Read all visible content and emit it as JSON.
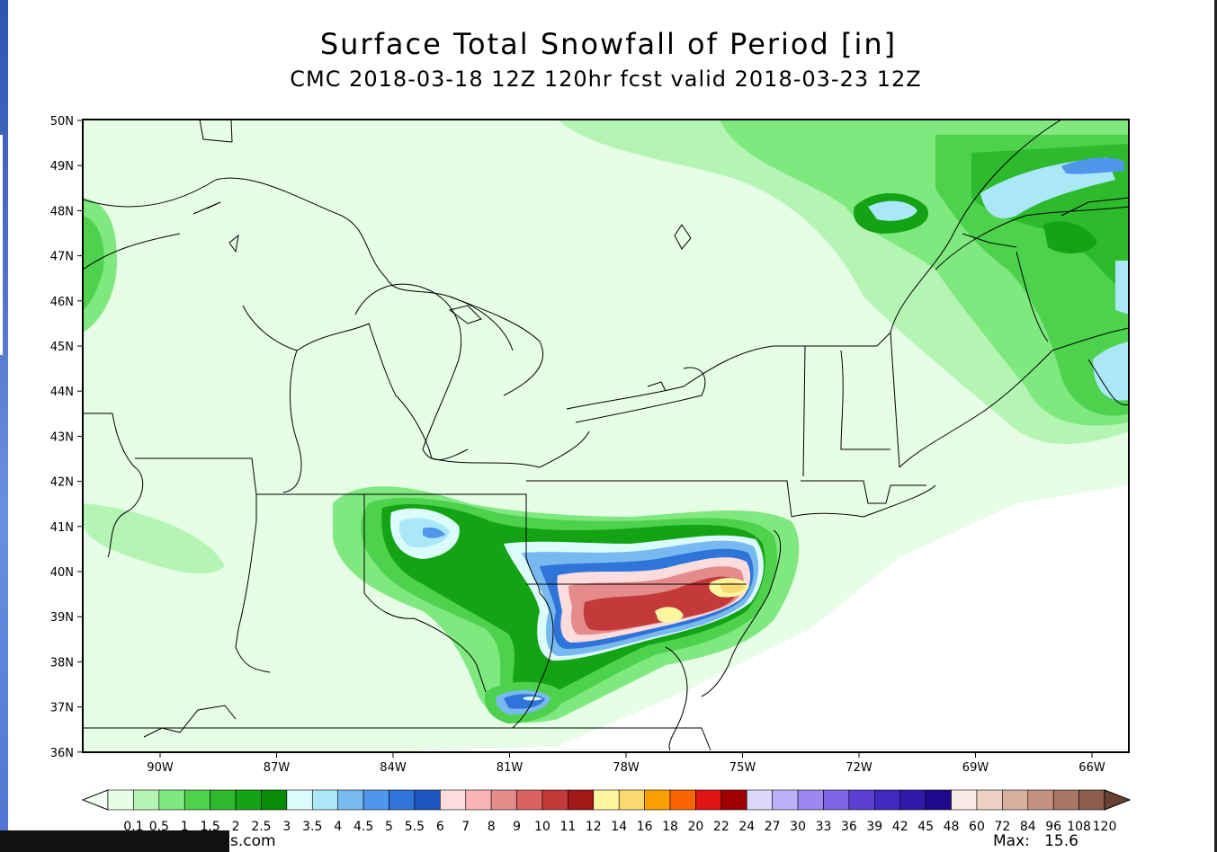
{
  "title": "Surface Total Snowfall of Period [in]",
  "subtitle": "CMC 2018-03-18 12Z 120hr fcst valid 2018-03-23 12Z",
  "lat_labels": [
    "50N",
    "49N",
    "48N",
    "47N",
    "46N",
    "45N",
    "44N",
    "43N",
    "42N",
    "41N",
    "40N",
    "39N",
    "38N",
    "37N",
    "36N"
  ],
  "lon_labels": [
    "90W",
    "87W",
    "84W",
    "81W",
    "78W",
    "75W",
    "72W",
    "69W",
    "66W"
  ],
  "colorbar": {
    "labels": [
      "0.1",
      "0.5",
      "1",
      "1.5",
      "2",
      "2.5",
      "3",
      "3.5",
      "4",
      "4.5",
      "5",
      "5.5",
      "6",
      "7",
      "8",
      "9",
      "10",
      "11",
      "12",
      "14",
      "16",
      "18",
      "20",
      "22",
      "24",
      "27",
      "30",
      "33",
      "36",
      "39",
      "42",
      "45",
      "48",
      "60",
      "72",
      "84",
      "96",
      "108",
      "120"
    ],
    "colors": [
      "#e6fde6",
      "#b4f5b4",
      "#7fe87f",
      "#4ed24e",
      "#2dba2d",
      "#14a314",
      "#068c06",
      "#dcfcfc",
      "#aae8f8",
      "#78b9f0",
      "#5096ea",
      "#2f74d8",
      "#1a55c0",
      "#fcdcdc",
      "#f8b4b4",
      "#e48c8c",
      "#dc6262",
      "#c43a3a",
      "#a01818",
      "#fcf6a0",
      "#fcd870",
      "#fca000",
      "#fc6400",
      "#e01414",
      "#a00000",
      "#dcd8fc",
      "#bcb0f8",
      "#9c88f0",
      "#7c64e4",
      "#5c40d4",
      "#4028c0",
      "#3018a8",
      "#20088c",
      "#f8ece4",
      "#ecd0c4",
      "#d8b0a0",
      "#c49080",
      "#a87464",
      "#8c5c4c"
    ]
  },
  "footer": {
    "url": "s.com",
    "max_label": "Max:",
    "max_value": "15.6"
  }
}
